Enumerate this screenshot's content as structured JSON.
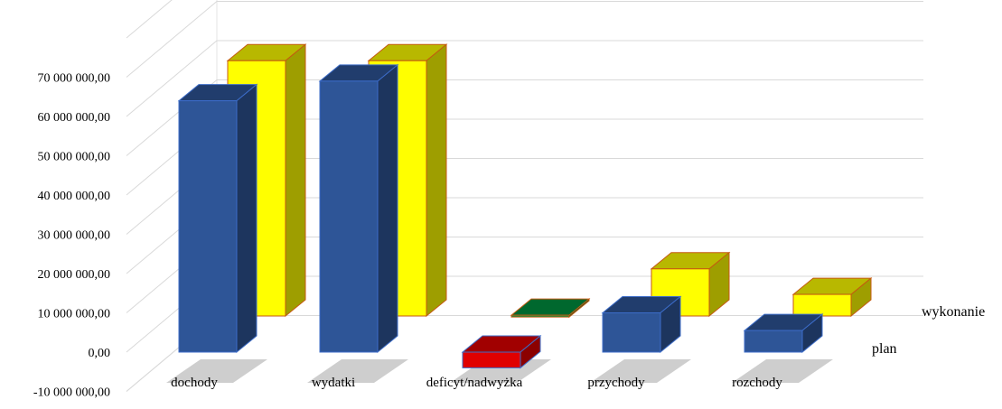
{
  "chart_data": {
    "type": "bar",
    "three_d": true,
    "categories": [
      "dochody",
      "wydatki",
      "deficyt/nadwyżka",
      "przychody",
      "rozchody"
    ],
    "series": [
      {
        "name": "plan",
        "values": [
          64000000,
          69000000,
          -4000000,
          10000000,
          5500000
        ],
        "colors": [
          "#2E5597",
          "#2E5597",
          "#E00000",
          "#2E5597",
          "#2E5597"
        ]
      },
      {
        "name": "wykonanie",
        "values": [
          65000000,
          65000000,
          200000,
          12000000,
          5500000
        ],
        "colors": [
          "#FFFF00",
          "#FFFF00",
          "#009040",
          "#FFFF00",
          "#FFFF00"
        ]
      }
    ],
    "yticks": [
      "-10 000 000,00",
      "0,00",
      "10 000 000,00",
      "20 000 000,00",
      "30 000 000,00",
      "40 000 000,00",
      "50 000 000,00",
      "60 000 000,00",
      "70 000 000,00"
    ],
    "ylim": [
      -10000000,
      70000000
    ],
    "grid": true,
    "legend": "none",
    "title": "",
    "xlabel": "",
    "ylabel": ""
  }
}
